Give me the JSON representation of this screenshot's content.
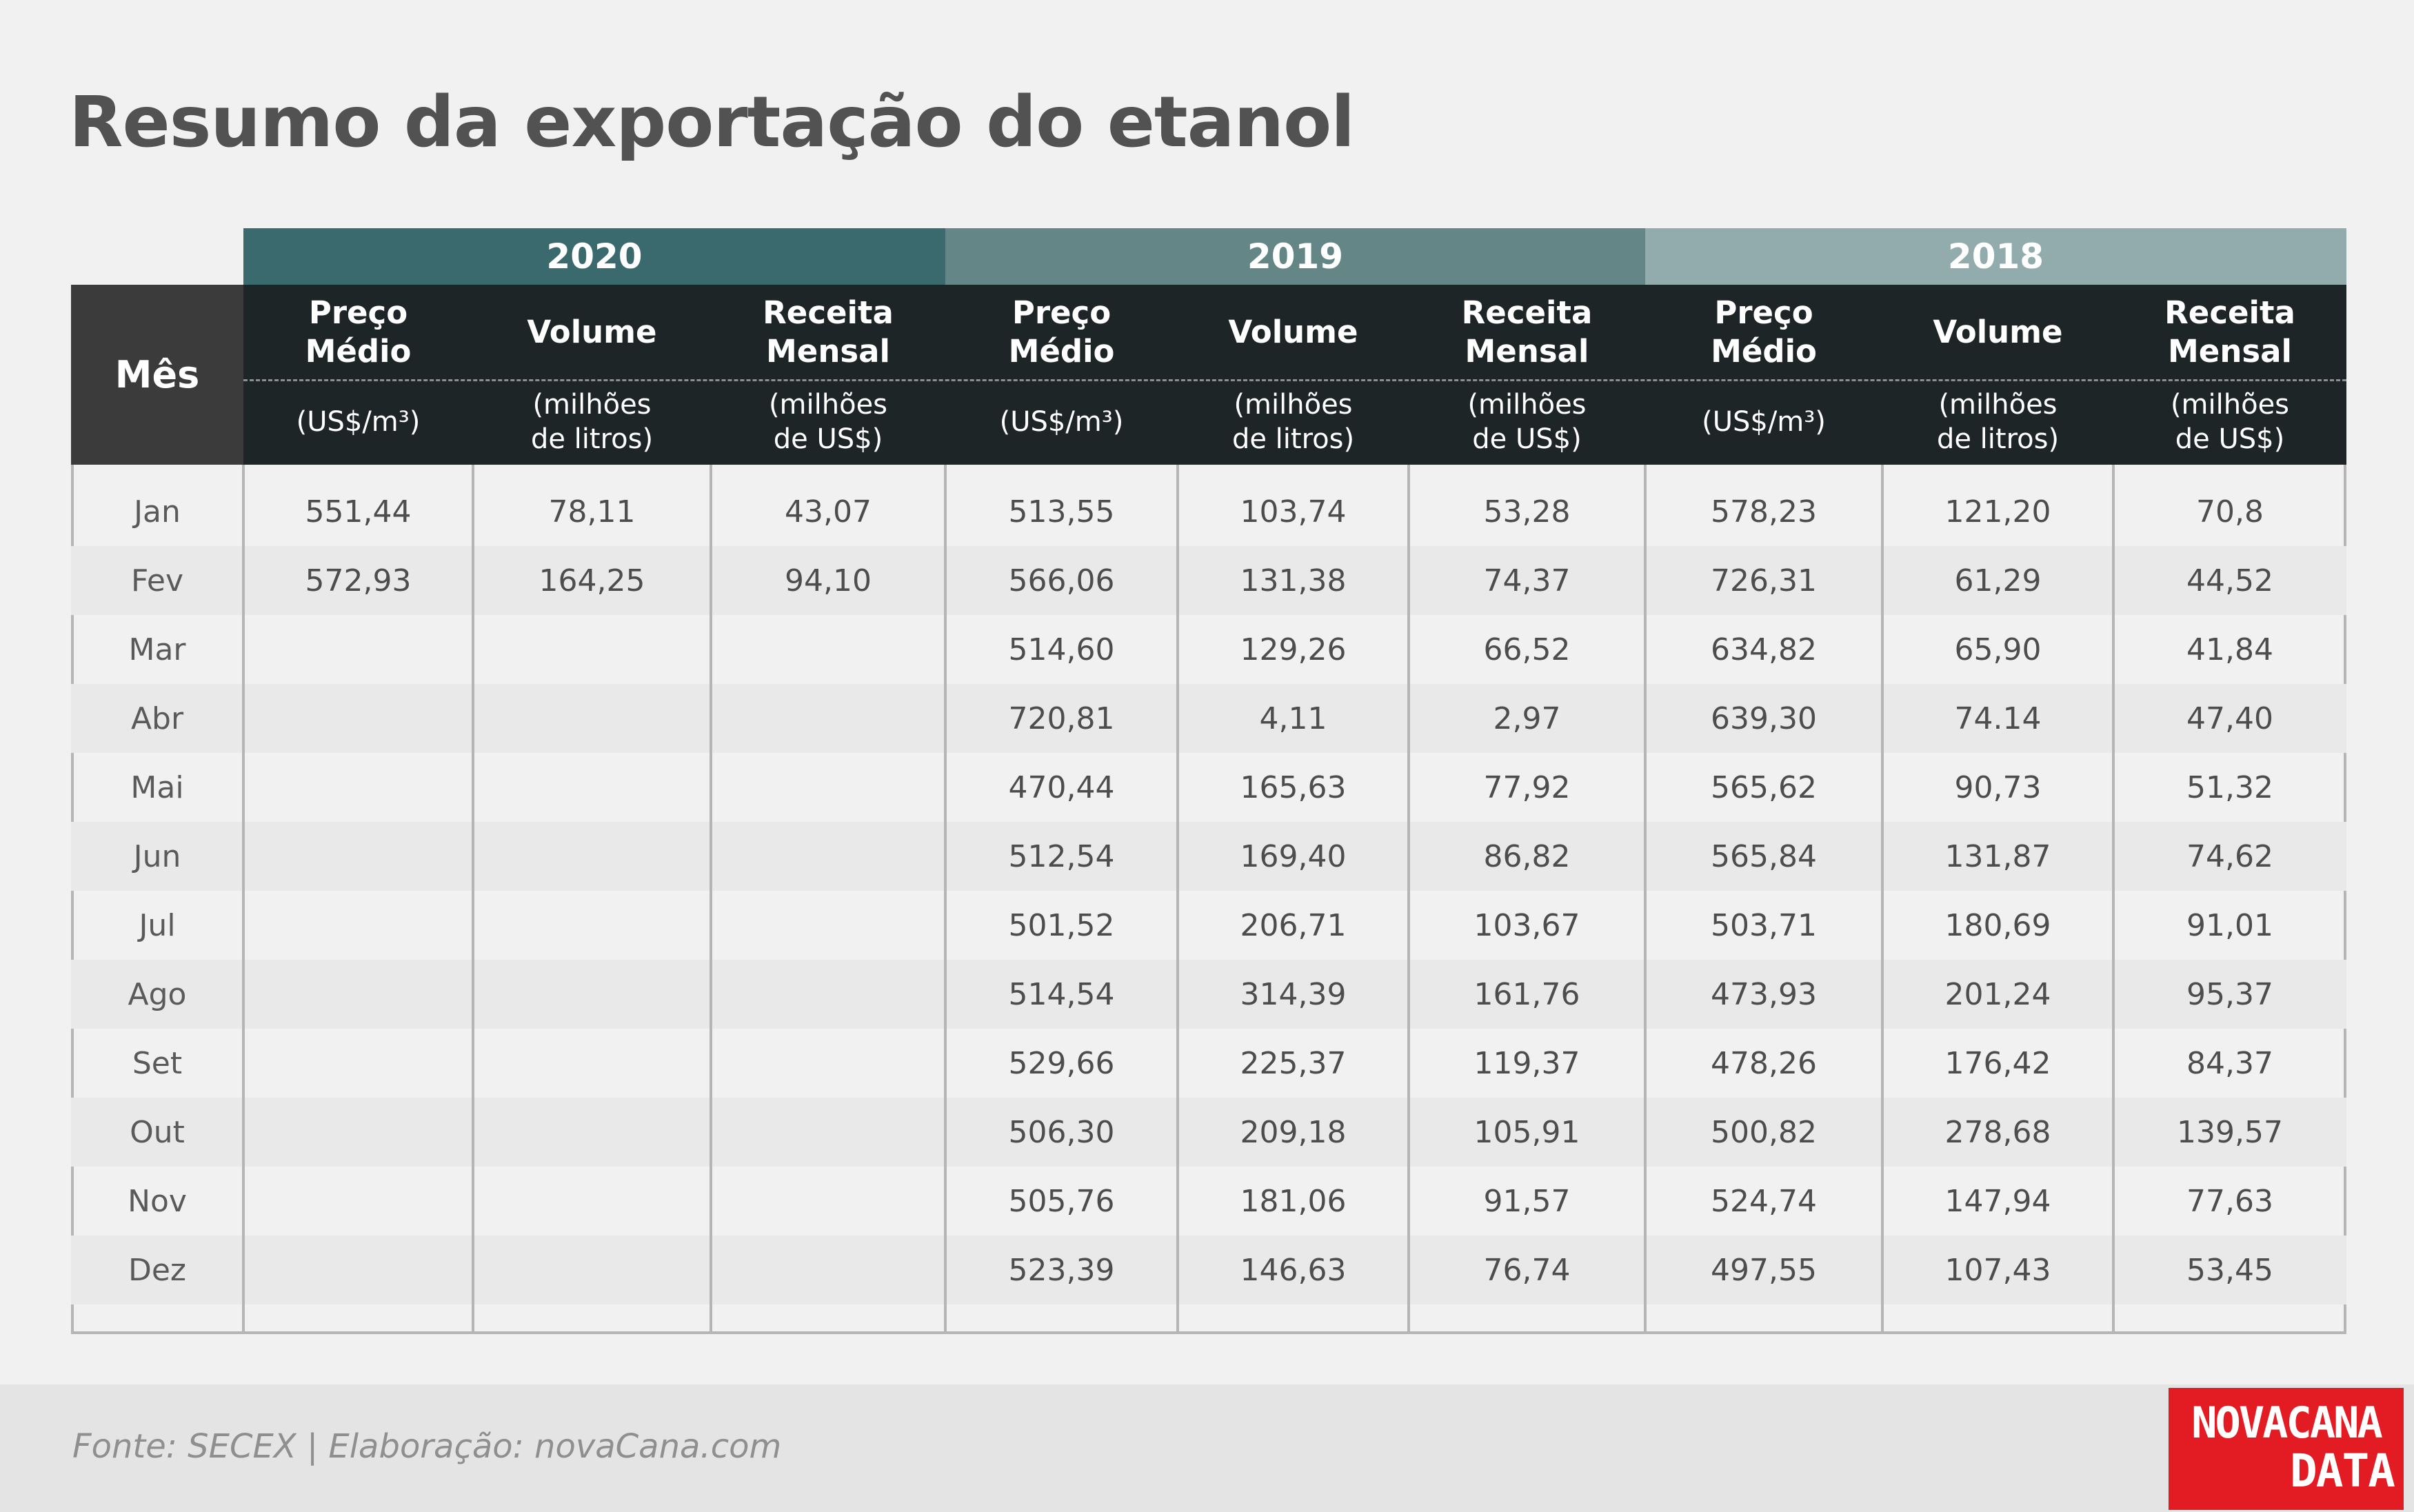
{
  "title": "Resumo da exportação do etanol",
  "footer": {
    "source": "Fonte: SECEX | Elaboração: novaCana.com",
    "logo_line1": "NOVACANA",
    "logo_line2": "DATA"
  },
  "colors": {
    "year_2020": "#3b6a6e",
    "year_2019": "#658686",
    "year_2018": "#92abac",
    "header_dark": "#1e2526",
    "mes_header": "#3b3b3b",
    "logo_red": "#e31b23"
  },
  "chart_data": {
    "type": "table",
    "title": "Resumo da exportação do etanol",
    "row_header": "Mês",
    "years": [
      "2020",
      "2019",
      "2018"
    ],
    "columns": [
      {
        "name": "Preço\nMédio",
        "unit": "(US$/m³)"
      },
      {
        "name": "Volume",
        "unit": "(milhões\nde litros)"
      },
      {
        "name": "Receita\nMensal",
        "unit": "(milhões\nde US$)"
      }
    ],
    "rows": [
      {
        "month": "Jan",
        "values": [
          "551,44",
          "78,11",
          "43,07",
          "513,55",
          "103,74",
          "53,28",
          "578,23",
          "121,20",
          "70,8"
        ]
      },
      {
        "month": "Fev",
        "values": [
          "572,93",
          "164,25",
          "94,10",
          "566,06",
          "131,38",
          "74,37",
          "726,31",
          "61,29",
          "44,52"
        ]
      },
      {
        "month": "Mar",
        "values": [
          "",
          "",
          "",
          "514,60",
          "129,26",
          "66,52",
          "634,82",
          "65,90",
          "41,84"
        ]
      },
      {
        "month": "Abr",
        "values": [
          "",
          "",
          "",
          "720,81",
          "4,11",
          "2,97",
          "639,30",
          "74.14",
          "47,40"
        ]
      },
      {
        "month": "Mai",
        "values": [
          "",
          "",
          "",
          "470,44",
          "165,63",
          "77,92",
          "565,62",
          "90,73",
          "51,32"
        ]
      },
      {
        "month": "Jun",
        "values": [
          "",
          "",
          "",
          "512,54",
          "169,40",
          "86,82",
          "565,84",
          "131,87",
          "74,62"
        ]
      },
      {
        "month": "Jul",
        "values": [
          "",
          "",
          "",
          "501,52",
          "206,71",
          "103,67",
          "503,71",
          "180,69",
          "91,01"
        ]
      },
      {
        "month": "Ago",
        "values": [
          "",
          "",
          "",
          "514,54",
          "314,39",
          "161,76",
          "473,93",
          "201,24",
          "95,37"
        ]
      },
      {
        "month": "Set",
        "values": [
          "",
          "",
          "",
          "529,66",
          "225,37",
          "119,37",
          "478,26",
          "176,42",
          "84,37"
        ]
      },
      {
        "month": "Out",
        "values": [
          "",
          "",
          "",
          "506,30",
          "209,18",
          "105,91",
          "500,82",
          "278,68",
          "139,57"
        ]
      },
      {
        "month": "Nov",
        "values": [
          "",
          "",
          "",
          "505,76",
          "181,06",
          "91,57",
          "524,74",
          "147,94",
          "77,63"
        ]
      },
      {
        "month": "Dez",
        "values": [
          "",
          "",
          "",
          "523,39",
          "146,63",
          "76,74",
          "497,55",
          "107,43",
          "53,45"
        ]
      }
    ]
  }
}
